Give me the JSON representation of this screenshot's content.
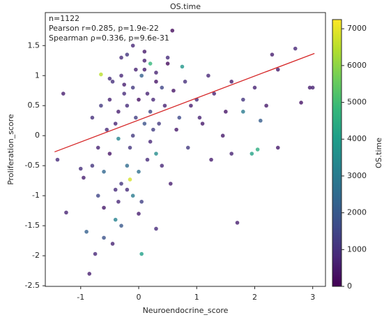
{
  "chart_data": {
    "type": "scatter",
    "title": "OS.time",
    "xlabel": "Neuroendocrine_score",
    "ylabel": "Proliferation_score",
    "annotations": [
      "n=1122",
      "Pearson r=0.285, p=1.9e-22",
      "Spearman ρ=0.336, p=9.6e-31"
    ],
    "xlim": [
      -1.61,
      3.22
    ],
    "xticks": [
      -1,
      0,
      1,
      2,
      3
    ],
    "ylim": [
      -2.51,
      2.05
    ],
    "yticks": [
      -2.5,
      -2.0,
      -1.5,
      -1.0,
      -0.5,
      0.0,
      0.5,
      1.0,
      1.5
    ],
    "colorbar": {
      "label": "OS.time",
      "lim": [
        0,
        7250
      ],
      "ticks": [
        0,
        1000,
        2000,
        3000,
        4000,
        5000,
        6000,
        7000
      ],
      "colormap": "viridis"
    },
    "fit": {
      "color": "#d62728",
      "x": [
        -1.45,
        3.03
      ],
      "y": [
        -0.27,
        1.37
      ]
    },
    "x": [
      -0.3,
      -0.1,
      0.1,
      -0.2,
      0.0,
      0.2,
      -0.4,
      -0.5,
      -0.3,
      -0.6,
      -0.2,
      0.1,
      0.3,
      0.5,
      -0.65,
      -0.15,
      0.2,
      -0.25,
      -0.05,
      0.15,
      -0.45,
      -0.35,
      0.05,
      0.25,
      0.4,
      -0.55,
      -0.7,
      -0.8,
      -0.1,
      0.0,
      -0.3,
      -0.2,
      0.35,
      0.45,
      0.6,
      0.7,
      0.8,
      0.9,
      1.0,
      1.1,
      1.2,
      1.3,
      1.5,
      1.6,
      1.8,
      2.0,
      2.2,
      2.4,
      2.7,
      2.3,
      3.0,
      2.8,
      2.4,
      1.7,
      2.05,
      1.95,
      1.8,
      0.58,
      0.05,
      -1.4,
      -1.25,
      -0.85,
      -0.75,
      -1.0,
      -1.3,
      -0.9,
      -0.6,
      -0.4,
      -0.5,
      -0.3,
      -0.2,
      0.1,
      0.2,
      0.3,
      -0.1,
      -0.4,
      -0.6,
      -0.7,
      -0.45,
      -0.35,
      -0.15,
      0.0,
      0.15,
      0.25,
      -0.05,
      -0.25,
      -0.5,
      0.4,
      0.55,
      0.65,
      0.85,
      1.05,
      1.25,
      1.45,
      0.75,
      0.5,
      0.3,
      -0.8,
      -0.95,
      -0.65,
      -0.1,
      0.1,
      0.05,
      -0.35,
      0.3,
      2.95,
      1.6,
      2.1
    ],
    "values": [
      1.0,
      0.8,
      1.1,
      0.5,
      0.6,
      0.4,
      0.2,
      -0.3,
      -0.8,
      -1.2,
      -0.5,
      0.2,
      0.9,
      1.2,
      1.02,
      -0.73,
      1.2,
      0.7,
      0.3,
      0.7,
      0.9,
      0.4,
      1.0,
      0.6,
      0.8,
      0.1,
      -0.2,
      -0.5,
      -1.0,
      -1.3,
      -1.5,
      -0.9,
      0.2,
      0.5,
      0.75,
      0.3,
      0.9,
      0.5,
      0.6,
      0.2,
      1.0,
      0.7,
      0.4,
      0.9,
      0.6,
      0.8,
      0.5,
      1.1,
      1.45,
      1.35,
      0.8,
      0.55,
      -0.2,
      -1.45,
      -0.23,
      -0.3,
      0.4,
      1.75,
      -1.97,
      -0.4,
      -1.28,
      -2.3,
      -1.97,
      -0.55,
      0.7,
      -1.6,
      -1.7,
      -1.4,
      0.6,
      1.3,
      1.35,
      1.25,
      -0.1,
      -0.3,
      0.0,
      -0.9,
      -0.6,
      -1.0,
      -1.8,
      -1.1,
      -0.2,
      -0.6,
      -0.4,
      0.1,
      1.1,
      0.85,
      0.95,
      -0.5,
      -0.8,
      0.1,
      -0.2,
      0.3,
      -0.4,
      0.0,
      1.15,
      1.3,
      1.05,
      0.3,
      -0.7,
      0.5,
      1.5,
      1.4,
      -1.1,
      -0.05,
      -1.55,
      0.8,
      -0.3,
      0.25
    ],
    "colors": [
      800,
      1200,
      600,
      900,
      300,
      1500,
      700,
      400,
      1100,
      500,
      2500,
      1800,
      400,
      200,
      6500,
      6800,
      4800,
      900,
      1300,
      700,
      1000,
      600,
      2200,
      800,
      1500,
      900,
      700,
      1100,
      3000,
      600,
      2000,
      900,
      1200,
      700,
      400,
      1600,
      1000,
      600,
      900,
      500,
      800,
      700,
      400,
      600,
      1100,
      700,
      500,
      600,
      800,
      600,
      700,
      400,
      500,
      600,
      4500,
      4200,
      3000,
      200,
      4100,
      900,
      700,
      600,
      800,
      1000,
      600,
      2200,
      1800,
      3200,
      700,
      900,
      1100,
      600,
      800,
      3500,
      1200,
      900,
      2400,
      1500,
      700,
      800,
      1100,
      2600,
      900,
      1300,
      700,
      600,
      1000,
      800,
      600,
      500,
      1200,
      700,
      600,
      500,
      3800,
      900,
      700,
      1000,
      600,
      1200,
      800,
      500,
      1400,
      3300,
      900,
      600,
      700,
      2100
    ]
  }
}
